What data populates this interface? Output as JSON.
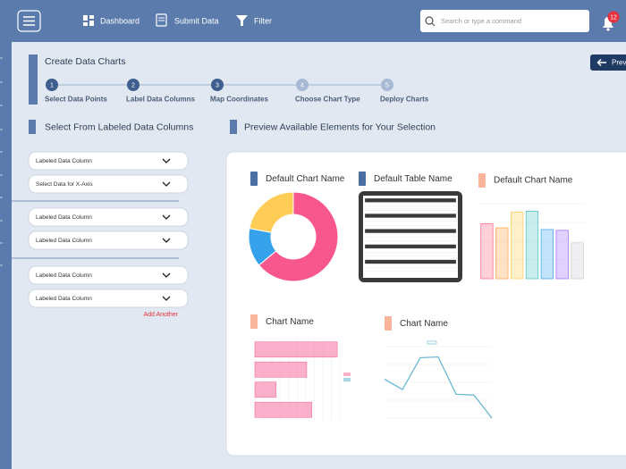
{
  "nav": {
    "items": [
      "Dashboard",
      "Submit Data",
      "Filter"
    ],
    "search_placeholder": "Search or type a command",
    "notifications": 12,
    "preview_button": "Prev"
  },
  "header": {
    "title": "Create Data Charts",
    "steps": [
      {
        "number": "1",
        "label": "Select Data Points"
      },
      {
        "number": "2",
        "label": "Label Data Columns"
      },
      {
        "number": "3",
        "label": "Map Coordinates"
      },
      {
        "number": "4",
        "label": "Choose Chart Type"
      },
      {
        "number": "5",
        "label": "Deploy Charts"
      }
    ]
  },
  "left_panel": {
    "title": "Select From Labeled Data Columns",
    "dropdowns": [
      "Labeled Data Column",
      "Select Data for X-Axis",
      "Labeled Data Column",
      "Labeled Data Column",
      "Labeled Data Column",
      "Labeled Data Column"
    ],
    "add_another": "Add Another"
  },
  "right_panel": {
    "title": "Preview Available Elements for Your Selection",
    "cards": [
      {
        "title": "Default Chart Name",
        "chart": {
          "type": "pie",
          "values": [
            64,
            14,
            22
          ],
          "colors": [
            "#f7578c",
            "#36a2eb",
            "#ffcd56"
          ]
        }
      },
      {
        "title": "Default Table Name"
      },
      {
        "title": "Default Chart Name",
        "chart": {
          "type": "bar",
          "values": [
            66,
            61,
            80,
            81,
            59,
            58,
            43
          ],
          "colors": [
            "#ff6384",
            "#ff9f40",
            "#ffcd56",
            "#4bc0c0",
            "#36a2eb",
            "#9966ff",
            "#c9cbcf"
          ],
          "ylim": [
            0,
            90
          ]
        }
      },
      {
        "title": "Chart Name",
        "chart": {
          "type": "hbar",
          "values": [
            97,
            61,
            25,
            67
          ],
          "color": "#f56f9e",
          "xlim": [
            0,
            100
          ]
        }
      },
      {
        "title": "Chart Name",
        "chart": {
          "type": "line",
          "values": [
            49,
            36,
            76,
            77,
            30,
            29,
            0
          ],
          "color": "#5fb3cf",
          "ylim": [
            0,
            90
          ]
        }
      }
    ]
  }
}
